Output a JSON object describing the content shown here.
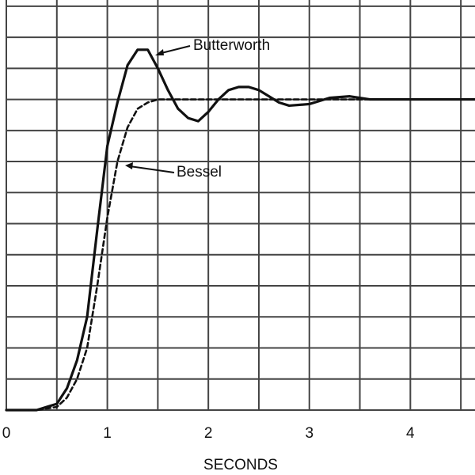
{
  "chart_data": {
    "type": "line",
    "x_label": "SECONDS",
    "annotations": [
      "Butterworth",
      "Bessel"
    ],
    "x": [
      0,
      0.3,
      0.4,
      0.5,
      0.6,
      0.7,
      0.8,
      0.9,
      1.0,
      1.1,
      1.2,
      1.3,
      1.4,
      1.5,
      1.6,
      1.7,
      1.8,
      1.9,
      2.0,
      2.1,
      2.2,
      2.3,
      2.4,
      2.5,
      2.6,
      2.7,
      2.8,
      3.0,
      3.2,
      3.4,
      3.6,
      3.8,
      4.0,
      4.64
    ],
    "series": [
      {
        "name": "Butterworth",
        "color": "#111111",
        "dash": false,
        "values": [
          0,
          0,
          0.01,
          0.02,
          0.07,
          0.16,
          0.3,
          0.58,
          0.85,
          0.99,
          1.11,
          1.16,
          1.16,
          1.1,
          1.03,
          0.97,
          0.94,
          0.93,
          0.96,
          1.0,
          1.03,
          1.04,
          1.04,
          1.03,
          1.01,
          0.99,
          0.98,
          0.985,
          1.005,
          1.01,
          1.0,
          1.0,
          1.0,
          1.0
        ]
      },
      {
        "name": "Bessel",
        "color": "#111111",
        "dash": true,
        "values": [
          0,
          0,
          0.005,
          0.01,
          0.04,
          0.1,
          0.2,
          0.4,
          0.62,
          0.8,
          0.91,
          0.97,
          0.99,
          1.0,
          1.0,
          1.0,
          1.0,
          1.0,
          1.0,
          1.0,
          1.0,
          1.0,
          1.0,
          1.0,
          1.0,
          1.0,
          1.0,
          1.0,
          1.0,
          1.0,
          1.0,
          1.0,
          1.0,
          1.0
        ]
      }
    ],
    "xlim": [
      0,
      4.64
    ],
    "ylim": [
      0,
      1.32
    ],
    "xticks": [
      0,
      1,
      2,
      3,
      4
    ],
    "xgrid": [
      0,
      0.5,
      1,
      1.5,
      2,
      2.5,
      3,
      3.5,
      4,
      4.5
    ],
    "ygrid": [
      0,
      0.1,
      0.2,
      0.3,
      0.4,
      0.5,
      0.6,
      0.7,
      0.8,
      0.9,
      1.0,
      1.1,
      1.2,
      1.3
    ],
    "grid": true
  }
}
